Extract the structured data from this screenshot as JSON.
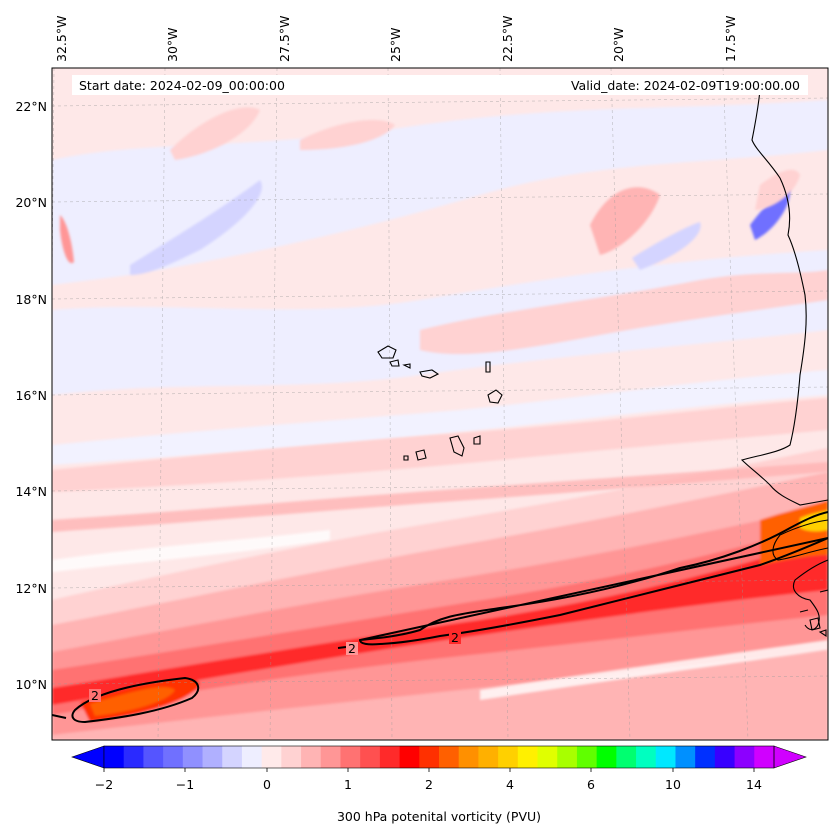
{
  "header": {
    "start_date": "Start date: 2024-02-09_00:00:00",
    "valid_date": "Valid_date: 2024-02-09T19:00:00.00"
  },
  "lon_labels": [
    "32.5°W",
    "30°W",
    "27.5°W",
    "25°W",
    "22.5°W",
    "20°W",
    "17.5°W"
  ],
  "lat_labels": [
    "22°N",
    "20°N",
    "18°N",
    "16°N",
    "14°N",
    "12°N",
    "10°N"
  ],
  "contour_labels": [
    "2",
    "2",
    "2"
  ],
  "colorbar": {
    "label": "300 hPa potenital vorticity (PVU)",
    "tick_labels": [
      "−2",
      "−1",
      "0",
      "1",
      "2",
      "4",
      "6",
      "10",
      "14"
    ],
    "colors": [
      "#0000ff",
      "#2a2aff",
      "#5555ff",
      "#7070ff",
      "#9090ff",
      "#b0b0ff",
      "#d4d4ff",
      "#eeeeff",
      "#ffeaea",
      "#ffd2d2",
      "#ffb4b4",
      "#ff9696",
      "#ff7272",
      "#ff5050",
      "#ff2a2a",
      "#ff0000",
      "#ff3000",
      "#ff6000",
      "#ff9000",
      "#ffb000",
      "#ffd000",
      "#fff000",
      "#e0ff00",
      "#a8ff00",
      "#60ff00",
      "#00ff00",
      "#00ff70",
      "#00ffc0",
      "#00e8ff",
      "#0090ff",
      "#0030ff",
      "#3800ff",
      "#8c00ff",
      "#d000ff"
    ]
  },
  "map_data": {
    "variable": "300 hPa potential vorticity",
    "units": "PVU",
    "lon_range": [
      -33,
      -15.5
    ],
    "lat_range": [
      9,
      22.7
    ],
    "contour_level": 2
  }
}
